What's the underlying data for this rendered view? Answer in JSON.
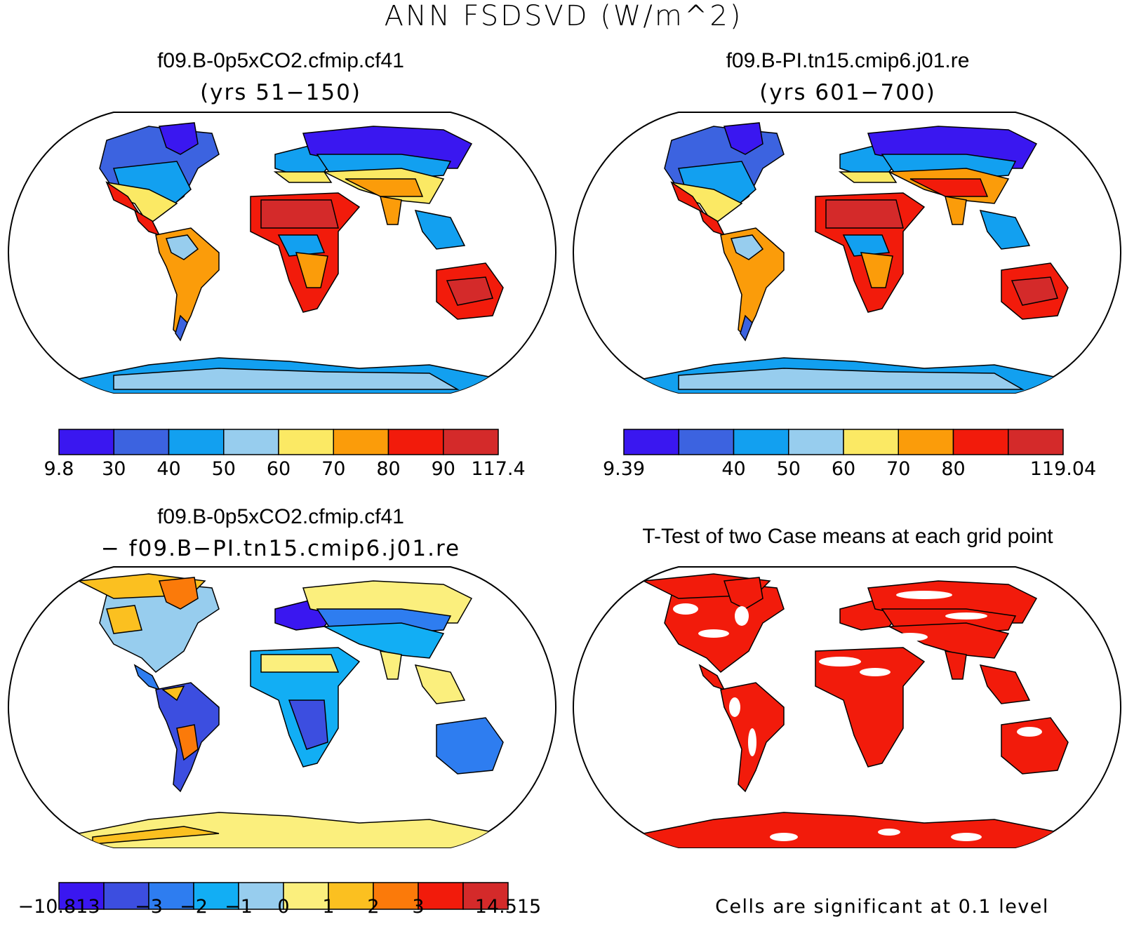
{
  "main_title": "ANN FSDSVD (W/m^2)",
  "panels": {
    "top_left": {
      "title": "f09.B-0p5xCO2.cfmip.cf41",
      "subtitle": "(yrs 51−150)",
      "colorbar_colors": [
        "#3a17f0",
        "#3c63e0",
        "#12a0f0",
        "#97cdee",
        "#fbe964",
        "#fb9c0a",
        "#f21b0b",
        "#d42a2a"
      ],
      "colorbar_labels": [
        "9.8",
        "30",
        "40",
        "50",
        "60",
        "70",
        "80",
        "90",
        "117.4"
      ]
    },
    "top_right": {
      "title": "f09.B-PI.tn15.cmip6.j01.re",
      "subtitle": "(yrs 601−700)",
      "colorbar_colors": [
        "#3a17f0",
        "#3c63e0",
        "#12a0f0",
        "#97cdee",
        "#fbe964",
        "#fb9c0a",
        "#f21b0b",
        "#d42a2a"
      ],
      "colorbar_labels": [
        "9.39",
        "",
        "40",
        "50",
        "60",
        "70",
        "80",
        "",
        "119.04"
      ]
    },
    "bottom_left": {
      "title": "f09.B-0p5xCO2.cfmip.cf41",
      "subtitle": "− f09.B−PI.tn15.cmip6.j01.re",
      "colorbar_colors": [
        "#3a17f0",
        "#3c4ee0",
        "#2e7df0",
        "#12aef4",
        "#97cdee",
        "#fbef7d",
        "#fbc020",
        "#fb7a0a",
        "#f21b0b",
        "#d42a2a"
      ],
      "colorbar_labels": [
        "−10.813",
        "",
        "−3",
        "−2",
        "−1",
        "0",
        "1",
        "2",
        "3",
        "",
        "14.515"
      ]
    },
    "bottom_right": {
      "title": "T-Test of two Case means at each grid point",
      "note": "Cells are significant at 0.1 level",
      "significant_color": "#f21b0b"
    }
  }
}
